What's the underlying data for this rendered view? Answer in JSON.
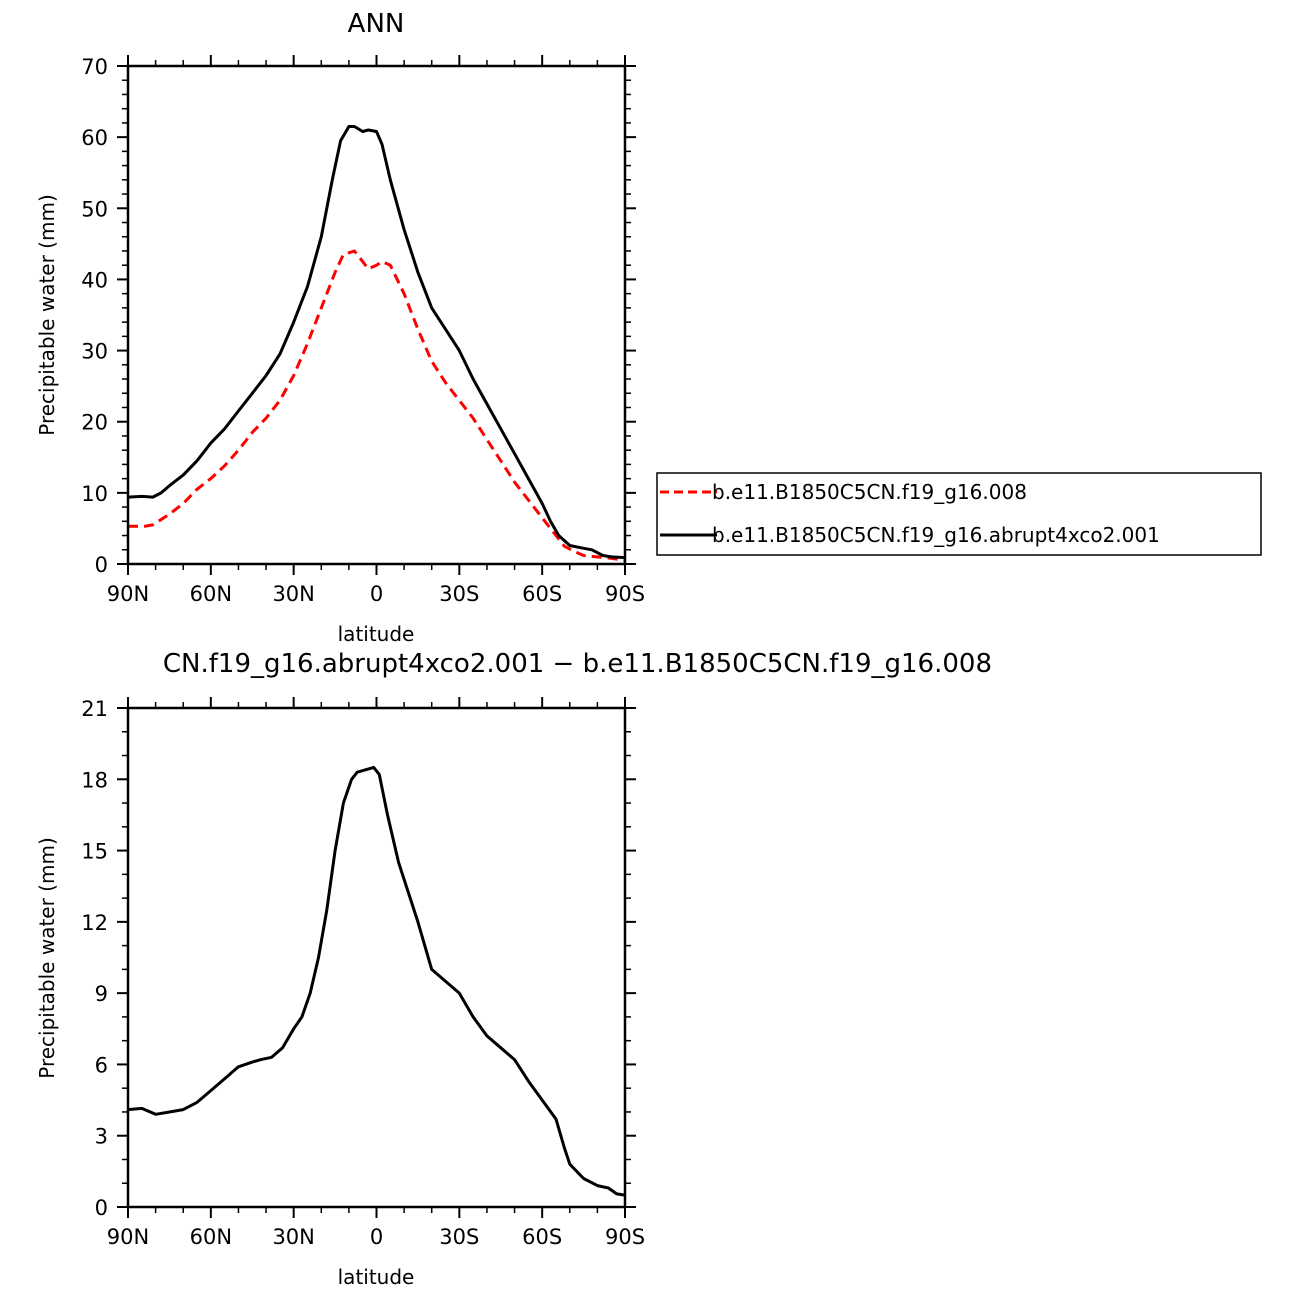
{
  "chart_data": [
    {
      "type": "line",
      "title": "ANN",
      "xlabel": "latitude",
      "ylabel": "Precipitable water (mm)",
      "xlim": [
        90,
        -90
      ],
      "ylim": [
        0,
        70
      ],
      "x_ticks": [
        {
          "value": 90,
          "label": "90N"
        },
        {
          "value": 60,
          "label": "60N"
        },
        {
          "value": 30,
          "label": "30N"
        },
        {
          "value": 0,
          "label": "0"
        },
        {
          "value": -30,
          "label": "30S"
        },
        {
          "value": -60,
          "label": "60S"
        },
        {
          "value": -90,
          "label": "90S"
        }
      ],
      "y_ticks": [
        0,
        10,
        20,
        30,
        40,
        50,
        60,
        70
      ],
      "legend_position": "right",
      "series": [
        {
          "name": "b.e11.B1850C5CN.f19_g16.008",
          "color": "#ff0000",
          "dashed": true,
          "points": [
            [
              90,
              5.3
            ],
            [
              84,
              5.3
            ],
            [
              81,
              5.5
            ],
            [
              75,
              7.0
            ],
            [
              70,
              8.5
            ],
            [
              65,
              10.5
            ],
            [
              60,
              12.0
            ],
            [
              55,
              13.8
            ],
            [
              50,
              16.0
            ],
            [
              45,
              18.5
            ],
            [
              40,
              20.5
            ],
            [
              35,
              23.0
            ],
            [
              30,
              26.5
            ],
            [
              25,
              31.0
            ],
            [
              20,
              36.0
            ],
            [
              15,
              41.0
            ],
            [
              12,
              43.5
            ],
            [
              8,
              44.0
            ],
            [
              5,
              42.5
            ],
            [
              3,
              41.5
            ],
            [
              0,
              42.0
            ],
            [
              -2,
              42.5
            ],
            [
              -5,
              42.0
            ],
            [
              -10,
              38.0
            ],
            [
              -15,
              33.0
            ],
            [
              -20,
              28.5
            ],
            [
              -25,
              25.5
            ],
            [
              -30,
              23.0
            ],
            [
              -35,
              20.5
            ],
            [
              -40,
              17.5
            ],
            [
              -45,
              14.5
            ],
            [
              -50,
              11.5
            ],
            [
              -55,
              9.0
            ],
            [
              -60,
              6.5
            ],
            [
              -65,
              4.0
            ],
            [
              -68,
              2.5
            ],
            [
              -72,
              1.7
            ],
            [
              -75,
              1.2
            ],
            [
              -80,
              1.0
            ],
            [
              -85,
              0.8
            ],
            [
              -90,
              0.5
            ]
          ]
        },
        {
          "name": "b.e11.B1850C5CN.f19_g16.abrupt4xco2.001",
          "color": "#000000",
          "dashed": false,
          "points": [
            [
              90,
              9.4
            ],
            [
              85,
              9.5
            ],
            [
              81,
              9.4
            ],
            [
              78,
              10.0
            ],
            [
              75,
              11.0
            ],
            [
              70,
              12.5
            ],
            [
              65,
              14.5
            ],
            [
              60,
              17.0
            ],
            [
              55,
              19.0
            ],
            [
              50,
              21.5
            ],
            [
              45,
              24.0
            ],
            [
              40,
              26.5
            ],
            [
              35,
              29.5
            ],
            [
              30,
              34.0
            ],
            [
              25,
              39.0
            ],
            [
              20,
              46.0
            ],
            [
              16,
              54.0
            ],
            [
              13,
              59.5
            ],
            [
              10,
              61.5
            ],
            [
              8,
              61.5
            ],
            [
              5,
              60.8
            ],
            [
              3,
              61.0
            ],
            [
              0,
              60.8
            ],
            [
              -2,
              59.0
            ],
            [
              -5,
              54.0
            ],
            [
              -10,
              47.0
            ],
            [
              -15,
              41.0
            ],
            [
              -20,
              36.0
            ],
            [
              -25,
              33.0
            ],
            [
              -30,
              30.0
            ],
            [
              -35,
              26.0
            ],
            [
              -40,
              22.5
            ],
            [
              -45,
              19.0
            ],
            [
              -50,
              15.5
            ],
            [
              -55,
              12.0
            ],
            [
              -60,
              8.5
            ],
            [
              -63,
              6.0
            ],
            [
              -66,
              4.0
            ],
            [
              -70,
              2.6
            ],
            [
              -75,
              2.2
            ],
            [
              -78,
              2.0
            ],
            [
              -82,
              1.2
            ],
            [
              -85,
              1.0
            ],
            [
              -90,
              0.9
            ]
          ]
        }
      ]
    },
    {
      "type": "line",
      "title": "CN.f19_g16.abrupt4xco2.001 − b.e11.B1850C5CN.f19_g16.008",
      "xlabel": "latitude",
      "ylabel": "Precipitable water (mm)",
      "xlim": [
        90,
        -90
      ],
      "ylim": [
        0,
        21
      ],
      "x_ticks": [
        {
          "value": 90,
          "label": "90N"
        },
        {
          "value": 60,
          "label": "60N"
        },
        {
          "value": 30,
          "label": "30N"
        },
        {
          "value": 0,
          "label": "0"
        },
        {
          "value": -30,
          "label": "30S"
        },
        {
          "value": -60,
          "label": "60S"
        },
        {
          "value": -90,
          "label": "90S"
        }
      ],
      "y_ticks": [
        0,
        3,
        6,
        9,
        12,
        15,
        18,
        21
      ],
      "series": [
        {
          "color": "#000000",
          "dashed": false,
          "points": [
            [
              90,
              4.1
            ],
            [
              85,
              4.15
            ],
            [
              80,
              3.9
            ],
            [
              75,
              4.0
            ],
            [
              70,
              4.1
            ],
            [
              65,
              4.4
            ],
            [
              60,
              4.9
            ],
            [
              55,
              5.4
            ],
            [
              50,
              5.9
            ],
            [
              45,
              6.1
            ],
            [
              42,
              6.2
            ],
            [
              38,
              6.3
            ],
            [
              34,
              6.7
            ],
            [
              30,
              7.5
            ],
            [
              27,
              8.0
            ],
            [
              24,
              9.0
            ],
            [
              21,
              10.5
            ],
            [
              18,
              12.5
            ],
            [
              15,
              15.0
            ],
            [
              12,
              17.0
            ],
            [
              9,
              18.0
            ],
            [
              7,
              18.3
            ],
            [
              4,
              18.4
            ],
            [
              1,
              18.5
            ],
            [
              -1,
              18.2
            ],
            [
              -4,
              16.5
            ],
            [
              -8,
              14.5
            ],
            [
              -15,
              12.0
            ],
            [
              -20,
              10.0
            ],
            [
              -25,
              9.5
            ],
            [
              -30,
              9.0
            ],
            [
              -35,
              8.0
            ],
            [
              -40,
              7.2
            ],
            [
              -45,
              6.7
            ],
            [
              -50,
              6.2
            ],
            [
              -55,
              5.3
            ],
            [
              -60,
              4.5
            ],
            [
              -65,
              3.7
            ],
            [
              -68,
              2.5
            ],
            [
              -70,
              1.8
            ],
            [
              -75,
              1.2
            ],
            [
              -80,
              0.9
            ],
            [
              -84,
              0.8
            ],
            [
              -87,
              0.55
            ],
            [
              -90,
              0.5
            ]
          ]
        }
      ]
    }
  ]
}
